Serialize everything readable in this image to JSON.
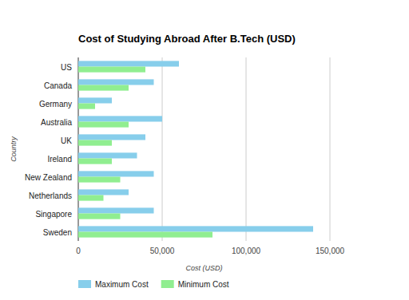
{
  "chart_data": {
    "type": "bar",
    "orientation": "horizontal",
    "title": "Cost of Studying Abroad After B.Tech (USD)",
    "x_label": "Cost (USD)",
    "y_label": "Country",
    "categories": [
      "US",
      "Canada",
      "Germany",
      "Australia",
      "UK",
      "Ireland",
      "New Zealand",
      "Netherlands",
      "Singapore",
      "Sweden"
    ],
    "series": [
      {
        "name": "Maximum Cost",
        "color": "#87ceeb",
        "values": [
          60000,
          45000,
          20000,
          50000,
          40000,
          35000,
          45000,
          30000,
          45000,
          140000
        ]
      },
      {
        "name": "Minimum Cost",
        "color": "#90ee90",
        "values": [
          40000,
          30000,
          10000,
          30000,
          20000,
          20000,
          25000,
          15000,
          25000,
          80000
        ]
      }
    ],
    "xlim": [
      0,
      150000
    ],
    "xticks": [
      0,
      {
        "value": 50000,
        "label": "50,000"
      },
      {
        "value": 100000,
        "label": "100,000"
      },
      {
        "value": 150000,
        "label": "150,000"
      }
    ],
    "grid": true,
    "legend": "bottom"
  }
}
